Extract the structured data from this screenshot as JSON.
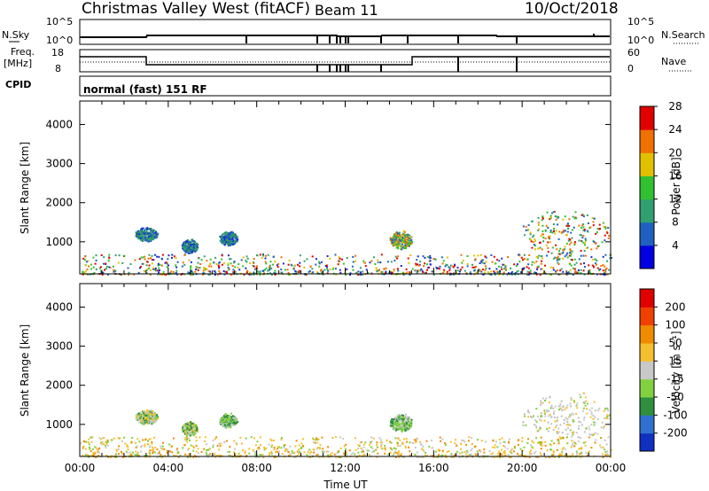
{
  "header": {
    "title": "Christmas Valley West (fitACF)",
    "beam": "Beam 11",
    "date": "10/Oct/2018"
  },
  "noise_panel": {
    "left_label": "N.Sky",
    "left_ticks": [
      "10^5",
      "10^0"
    ],
    "right_label": "N.Search",
    "right_ticks": [
      "10^5",
      "10^0"
    ]
  },
  "freq_panel": {
    "left_label_1": "Freq.",
    "left_label_2": "[MHz]",
    "left_ticks": [
      "18",
      "8"
    ],
    "right_label": "Nave",
    "right_ticks": [
      "60",
      "0"
    ]
  },
  "cpid": {
    "label": "CPID",
    "value": "normal (fast) 151 RF"
  },
  "chart_data": [
    {
      "type": "heatmap",
      "quantity": "power",
      "ylabel": "Slant Range [km]",
      "ylim": [
        180,
        4600
      ],
      "yticks": [
        1000,
        2000,
        3000,
        4000
      ],
      "xlim": [
        0,
        24
      ],
      "colorbar": {
        "label": "Power [dB]",
        "ticks": [
          "4",
          "8",
          "12",
          "16",
          "20",
          "24",
          "28"
        ],
        "colors": [
          "#0000e0",
          "#2060c0",
          "#30a070",
          "#30c030",
          "#e0c000",
          "#f07000",
          "#e00000"
        ]
      },
      "echo_regions": [
        {
          "t": [
            2.5,
            3.5
          ],
          "range": [
            1000,
            1400
          ],
          "color": "blue-green"
        },
        {
          "t": [
            4.6,
            5.3
          ],
          "range": [
            700,
            1100
          ],
          "color": "blue-green"
        },
        {
          "t": [
            6.3,
            7.1
          ],
          "range": [
            900,
            1300
          ],
          "color": "blue-green"
        },
        {
          "t": [
            14.0,
            15.0
          ],
          "range": [
            800,
            1300
          ],
          "color": "orange-green"
        },
        {
          "t": [
            20.0,
            23.9
          ],
          "range": [
            500,
            1900
          ],
          "color": "orange-red"
        },
        {
          "t": [
            0,
            24
          ],
          "range": [
            180,
            700
          ],
          "color": "mixed ground scatter"
        }
      ]
    },
    {
      "type": "heatmap",
      "quantity": "velocity",
      "ylabel": "Slant Range [km]",
      "ylim": [
        180,
        4600
      ],
      "yticks": [
        1000,
        2000,
        3000,
        4000
      ],
      "xlim": [
        0,
        24
      ],
      "xticks": [
        "00:00",
        "04:00",
        "08:00",
        "12:00",
        "16:00",
        "20:00",
        "00:00"
      ],
      "xlabel": "Time UT",
      "colorbar": {
        "label": "Velocity [m s⁻¹]",
        "ticks": [
          "200",
          "100",
          "50",
          "15",
          "-15",
          "-50",
          "-100",
          "-200"
        ],
        "colors": [
          "#1030c0",
          "#3070d0",
          "#2f8f3f",
          "#80d040",
          "#c8c8c8",
          "#f5c030",
          "#f08a00",
          "#f04000",
          "#e00000"
        ]
      },
      "echo_regions": [
        {
          "t": [
            2.5,
            3.5
          ],
          "range": [
            1000,
            1400
          ],
          "color": "grey-green"
        },
        {
          "t": [
            4.6,
            5.3
          ],
          "range": [
            700,
            1100
          ],
          "color": "grey-green"
        },
        {
          "t": [
            6.3,
            7.1
          ],
          "range": [
            900,
            1300
          ],
          "color": "green"
        },
        {
          "t": [
            14.0,
            15.0
          ],
          "range": [
            800,
            1300
          ],
          "color": "green"
        },
        {
          "t": [
            20.0,
            24.0
          ],
          "range": [
            500,
            1900
          ],
          "color": "grey"
        },
        {
          "t": [
            0,
            24
          ],
          "range": [
            180,
            700
          ],
          "color": "orange ground scatter"
        }
      ]
    }
  ]
}
